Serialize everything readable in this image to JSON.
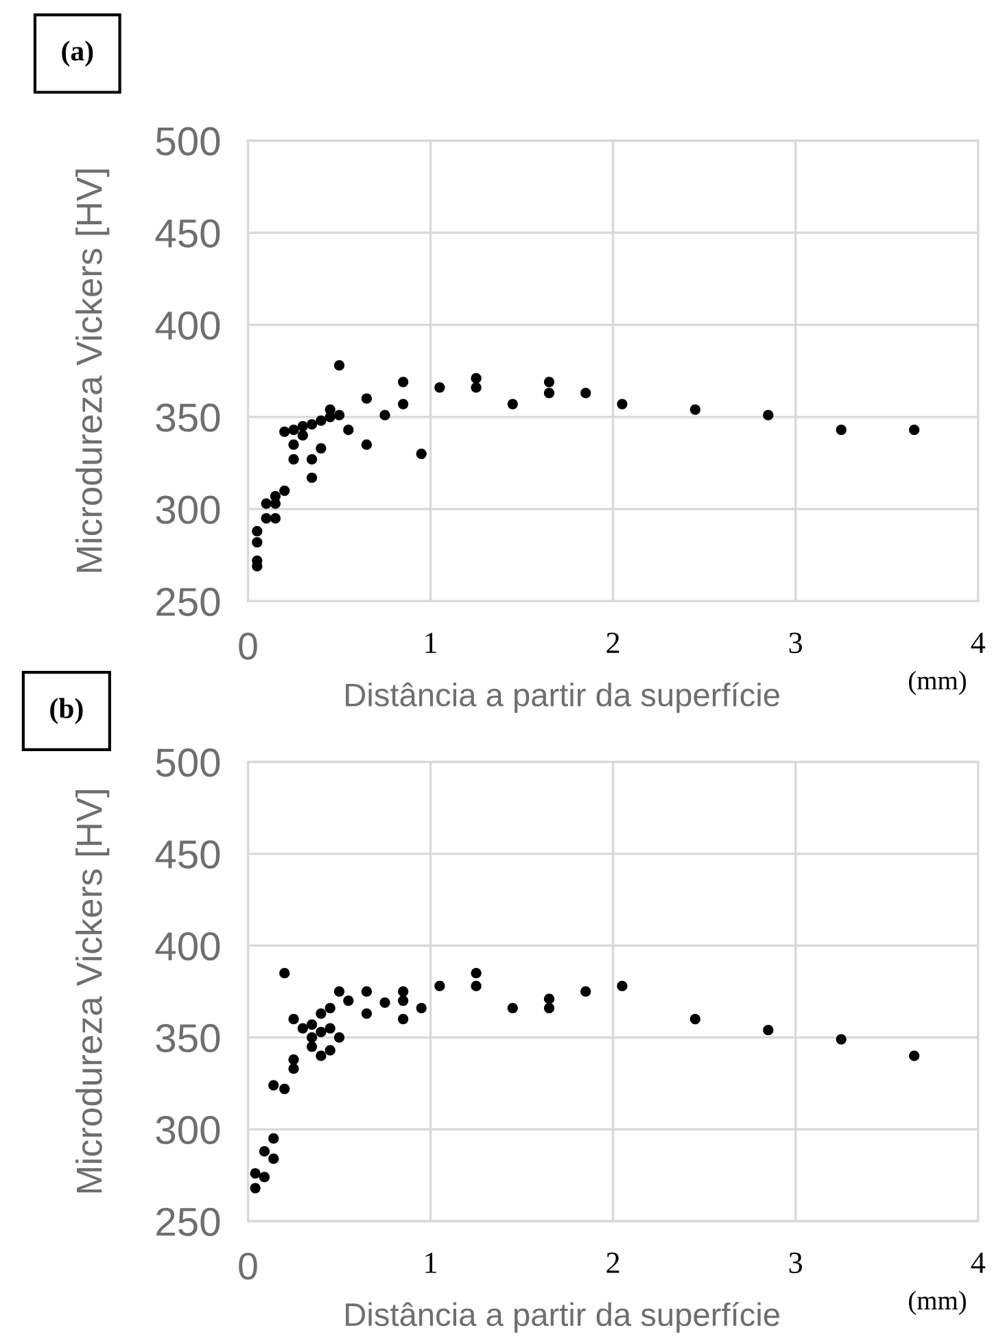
{
  "chart_data": [
    {
      "type": "scatter",
      "title": "(a)",
      "xlabel": "Distância a partir da superfície",
      "ylabel": "Microdureza Vickers [HV]",
      "annotations": [
        "(mm)"
      ],
      "xlim": [
        0,
        4
      ],
      "ylim": [
        250,
        500
      ],
      "xticks": [
        0,
        1,
        2,
        3,
        4
      ],
      "yticks": [
        250,
        300,
        350,
        400,
        450,
        500
      ],
      "grid": true,
      "marker": "circle",
      "series": [
        {
          "color": "#000000",
          "x": [
            0.05,
            0.05,
            0.05,
            0.05,
            0.1,
            0.1,
            0.15,
            0.15,
            0.15,
            0.2,
            0.2,
            0.25,
            0.25,
            0.25,
            0.3,
            0.3,
            0.35,
            0.35,
            0.35,
            0.4,
            0.4,
            0.45,
            0.45,
            0.5,
            0.5,
            0.55,
            0.65,
            0.65,
            0.75,
            0.85,
            0.85,
            0.95,
            1.05,
            1.25,
            1.25,
            1.45,
            1.65,
            1.65,
            1.85,
            2.05,
            2.45,
            2.85,
            3.25,
            3.65
          ],
          "values": [
            269,
            272,
            282,
            288,
            295,
            303,
            295,
            303,
            307,
            310,
            342,
            327,
            335,
            343,
            340,
            345,
            317,
            327,
            346,
            333,
            348,
            350,
            354,
            378,
            351,
            343,
            335,
            360,
            351,
            357,
            369,
            330,
            366,
            366,
            371,
            357,
            363,
            369,
            363,
            357,
            354,
            351,
            343,
            343
          ]
        }
      ]
    },
    {
      "type": "scatter",
      "title": "(b)",
      "xlabel": "Distância a partir da superfície",
      "ylabel": "Microdureza Vickers [HV]",
      "annotations": [
        "(mm)"
      ],
      "xlim": [
        0,
        4
      ],
      "ylim": [
        250,
        500
      ],
      "xticks": [
        0,
        1,
        2,
        3,
        4
      ],
      "yticks": [
        250,
        300,
        350,
        400,
        450,
        500
      ],
      "grid": true,
      "marker": "circle",
      "series": [
        {
          "color": "#000000",
          "x": [
            0.04,
            0.04,
            0.09,
            0.09,
            0.14,
            0.14,
            0.14,
            0.2,
            0.2,
            0.25,
            0.25,
            0.25,
            0.3,
            0.35,
            0.35,
            0.35,
            0.4,
            0.4,
            0.4,
            0.45,
            0.45,
            0.45,
            0.5,
            0.5,
            0.55,
            0.65,
            0.65,
            0.75,
            0.85,
            0.85,
            0.85,
            0.95,
            1.05,
            1.25,
            1.25,
            1.45,
            1.65,
            1.65,
            1.85,
            2.05,
            2.45,
            2.85,
            3.25,
            3.65
          ],
          "values": [
            268,
            276,
            274,
            288,
            284,
            295,
            324,
            322,
            385,
            333,
            338,
            360,
            355,
            345,
            350,
            357,
            340,
            353,
            363,
            343,
            355,
            366,
            350,
            375,
            370,
            363,
            375,
            369,
            360,
            370,
            375,
            366,
            378,
            378,
            385,
            366,
            366,
            371,
            375,
            378,
            360,
            354,
            349,
            340
          ]
        }
      ]
    }
  ]
}
